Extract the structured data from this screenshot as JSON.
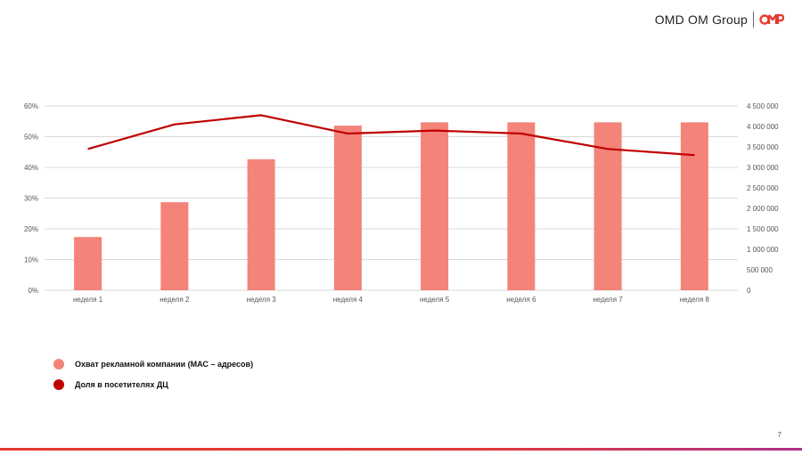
{
  "brand": {
    "name": "OMD OM Group",
    "logo": "omd-logo-icon"
  },
  "page_number": "7",
  "colors": {
    "bar": "#F4837A",
    "line": "#C00000",
    "grid": "#D9D9D9",
    "accent": "#E63B2E"
  },
  "legend": [
    {
      "label": "Охват рекламной компании (МАС – адресов)",
      "color": "#F4837A"
    },
    {
      "label": "Доля в посетителях ДЦ",
      "color": "#C00000"
    }
  ],
  "chart_data": {
    "type": "bar",
    "categories": [
      "неделя 1",
      "неделя 2",
      "неделя 3",
      "неделя 4",
      "неделя 5",
      "неделя 6",
      "неделя 7",
      "неделя 8"
    ],
    "series": [
      {
        "name": "Охват рекламной компании (МАС – адресов)",
        "type": "bar",
        "axis": "right",
        "values": [
          1300000,
          2150000,
          3200000,
          4020000,
          4100000,
          4100000,
          4100000,
          4100000
        ]
      },
      {
        "name": "Доля в посетителях ДЦ",
        "type": "line",
        "axis": "left",
        "values": [
          0.46,
          0.54,
          0.57,
          0.51,
          0.52,
          0.51,
          0.46,
          0.44
        ]
      }
    ],
    "left_axis": {
      "ylim": [
        0,
        0.6
      ],
      "ticks": [
        "0%",
        "10%",
        "20%",
        "30%",
        "40%",
        "50%",
        "60%"
      ]
    },
    "right_axis": {
      "ylim": [
        0,
        4500000
      ],
      "ticks": [
        "0",
        "500 000",
        "1 000 000",
        "1 500 000",
        "2 000 000",
        "2 500 000",
        "3 000 000",
        "3 500 000",
        "4 000 000",
        "4 500 000"
      ]
    },
    "grid": true,
    "legend_position": "bottom-left"
  }
}
